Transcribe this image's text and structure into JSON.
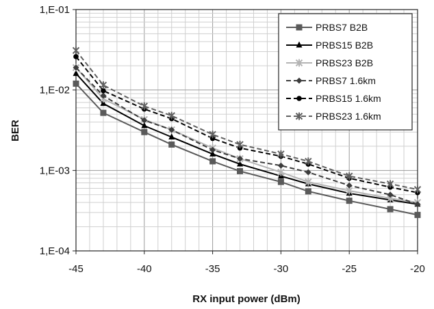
{
  "chart_data": {
    "type": "line",
    "title": "",
    "xlabel": "RX input power (dBm)",
    "ylabel": "BER",
    "x_ticks": [
      "-45",
      "-40",
      "-35",
      "-30",
      "-25",
      "-20"
    ],
    "y_ticks": [
      "1,E-04",
      "1,E-03",
      "1,E-02",
      "1,E-01"
    ],
    "xlim": [
      -45,
      -20
    ],
    "ylim": [
      0.0001,
      0.1
    ],
    "yscale": "log",
    "grid": true,
    "legend_position": "top-right",
    "x": [
      -45,
      -43,
      -40,
      -38,
      -35,
      -33,
      -30,
      -28,
      -25,
      -22,
      -20
    ],
    "series": [
      {
        "name": "PRBS7 B2B",
        "color": "#5a5a5a",
        "marker": "square",
        "dashed": false,
        "values": [
          0.012,
          0.0052,
          0.003,
          0.0021,
          0.0013,
          0.00098,
          0.00072,
          0.00055,
          0.00042,
          0.00033,
          0.00028
        ]
      },
      {
        "name": "PRBS15 B2B",
        "color": "#000000",
        "marker": "triangle",
        "dashed": false,
        "values": [
          0.016,
          0.0068,
          0.0036,
          0.0026,
          0.0016,
          0.0012,
          0.00085,
          0.00068,
          0.00052,
          0.00043,
          0.00038
        ]
      },
      {
        "name": "PRBS23 B2B",
        "color": "#b4b4b4",
        "marker": "x",
        "dashed": false,
        "values": [
          0.019,
          0.0078,
          0.0043,
          0.0032,
          0.0019,
          0.0014,
          0.00095,
          0.00072,
          0.00056,
          0.00045,
          0.0004
        ]
      },
      {
        "name": "PRBS7 1.6km",
        "color": "#3c3c3c",
        "marker": "diamond",
        "dashed": true,
        "values": [
          0.019,
          0.0085,
          0.0042,
          0.0032,
          0.0018,
          0.0014,
          0.00115,
          0.00095,
          0.00065,
          0.0005,
          0.00038
        ]
      },
      {
        "name": "PRBS15 1.6km",
        "color": "#000000",
        "marker": "circle",
        "dashed": true,
        "values": [
          0.026,
          0.0098,
          0.0058,
          0.0044,
          0.0025,
          0.0019,
          0.0015,
          0.0012,
          0.0008,
          0.00062,
          0.00053
        ]
      },
      {
        "name": "PRBS23 1.6km",
        "color": "#606060",
        "marker": "x",
        "dashed": true,
        "values": [
          0.031,
          0.0115,
          0.0063,
          0.0048,
          0.0028,
          0.0021,
          0.0016,
          0.0013,
          0.00085,
          0.00068,
          0.00058
        ]
      }
    ]
  }
}
